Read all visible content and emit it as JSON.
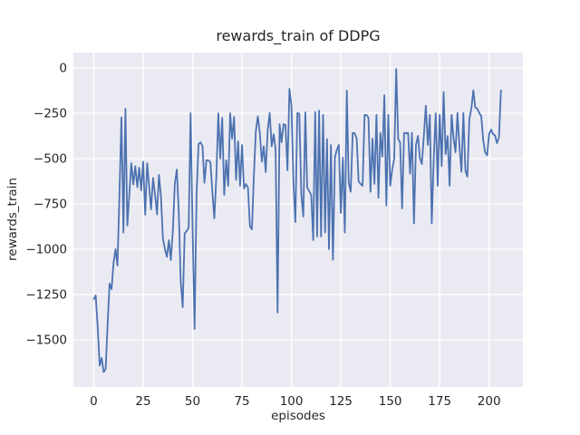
{
  "chart_data": {
    "type": "line",
    "title": "rewards_train of DDPG",
    "xlabel": "episodes",
    "ylabel": "rewards_train",
    "series_name": "rewards_train",
    "x_start": 0,
    "x_step": 1,
    "values": [
      -1275,
      -1255,
      -1430,
      -1642,
      -1600,
      -1678,
      -1660,
      -1420,
      -1190,
      -1220,
      -1075,
      -1000,
      -1090,
      -700,
      -272,
      -908,
      -225,
      -870,
      -700,
      -525,
      -642,
      -542,
      -658,
      -550,
      -675,
      -517,
      -810,
      -525,
      -650,
      -780,
      -607,
      -700,
      -808,
      -590,
      -708,
      -942,
      -1000,
      -1042,
      -950,
      -1060,
      -900,
      -640,
      -560,
      -800,
      -1175,
      -1320,
      -912,
      -900,
      -880,
      -250,
      -880,
      -1440,
      -700,
      -420,
      -410,
      -430,
      -633,
      -508,
      -510,
      -520,
      -680,
      -830,
      -600,
      -250,
      -500,
      -275,
      -700,
      -508,
      -650,
      -250,
      -390,
      -270,
      -617,
      -405,
      -650,
      -425,
      -665,
      -640,
      -660,
      -875,
      -890,
      -600,
      -350,
      -267,
      -358,
      -517,
      -432,
      -575,
      -342,
      -248,
      -432,
      -365,
      -448,
      -1350,
      -310,
      -410,
      -310,
      -315,
      -565,
      -115,
      -210,
      -632,
      -850,
      -248,
      -253,
      -700,
      -820,
      -245,
      -660,
      -680,
      -700,
      -950,
      -243,
      -930,
      -235,
      -930,
      -258,
      -908,
      -392,
      -1000,
      -425,
      -1058,
      -492,
      -450,
      -425,
      -800,
      -495,
      -908,
      -125,
      -633,
      -683,
      -358,
      -360,
      -390,
      -625,
      -640,
      -650,
      -258,
      -260,
      -275,
      -683,
      -390,
      -640,
      -258,
      -717,
      -358,
      -490,
      -150,
      -758,
      -258,
      -650,
      -560,
      -500,
      -5,
      -392,
      -410,
      -775,
      -358,
      -360,
      -358,
      -583,
      -358,
      -858,
      -425,
      -375,
      -500,
      -530,
      -375,
      -208,
      -425,
      -258,
      -858,
      -500,
      -250,
      -650,
      -258,
      -542,
      -133,
      -475,
      -375,
      -650,
      -258,
      -382,
      -465,
      -248,
      -432,
      -573,
      -248,
      -565,
      -600,
      -282,
      -225,
      -123,
      -217,
      -225,
      -248,
      -265,
      -398,
      -465,
      -482,
      -365,
      -340,
      -365,
      -372,
      -415,
      -382,
      -123
    ],
    "xlim": [
      -10.3,
      217.1
    ],
    "ylim": [
      -1760,
      85
    ],
    "x_ticks": [
      0,
      25,
      50,
      75,
      100,
      125,
      150,
      175,
      200
    ],
    "y_ticks": [
      0,
      -250,
      -500,
      -750,
      -1000,
      -1250,
      -1500
    ],
    "x_tick_labels": [
      "0",
      "25",
      "50",
      "75",
      "100",
      "125",
      "150",
      "175",
      "200"
    ],
    "y_tick_labels": [
      "0",
      "−250",
      "−500",
      "−750",
      "−1000",
      "−1250",
      "−1500"
    ],
    "grid": true,
    "legend_position": "none",
    "line_color": "#4C72B0",
    "plot_bg_color": "#EAEAF2",
    "grid_color": "#FFFFFF",
    "text_color": "#262626",
    "figure_bg_color": "#FFFFFF"
  }
}
